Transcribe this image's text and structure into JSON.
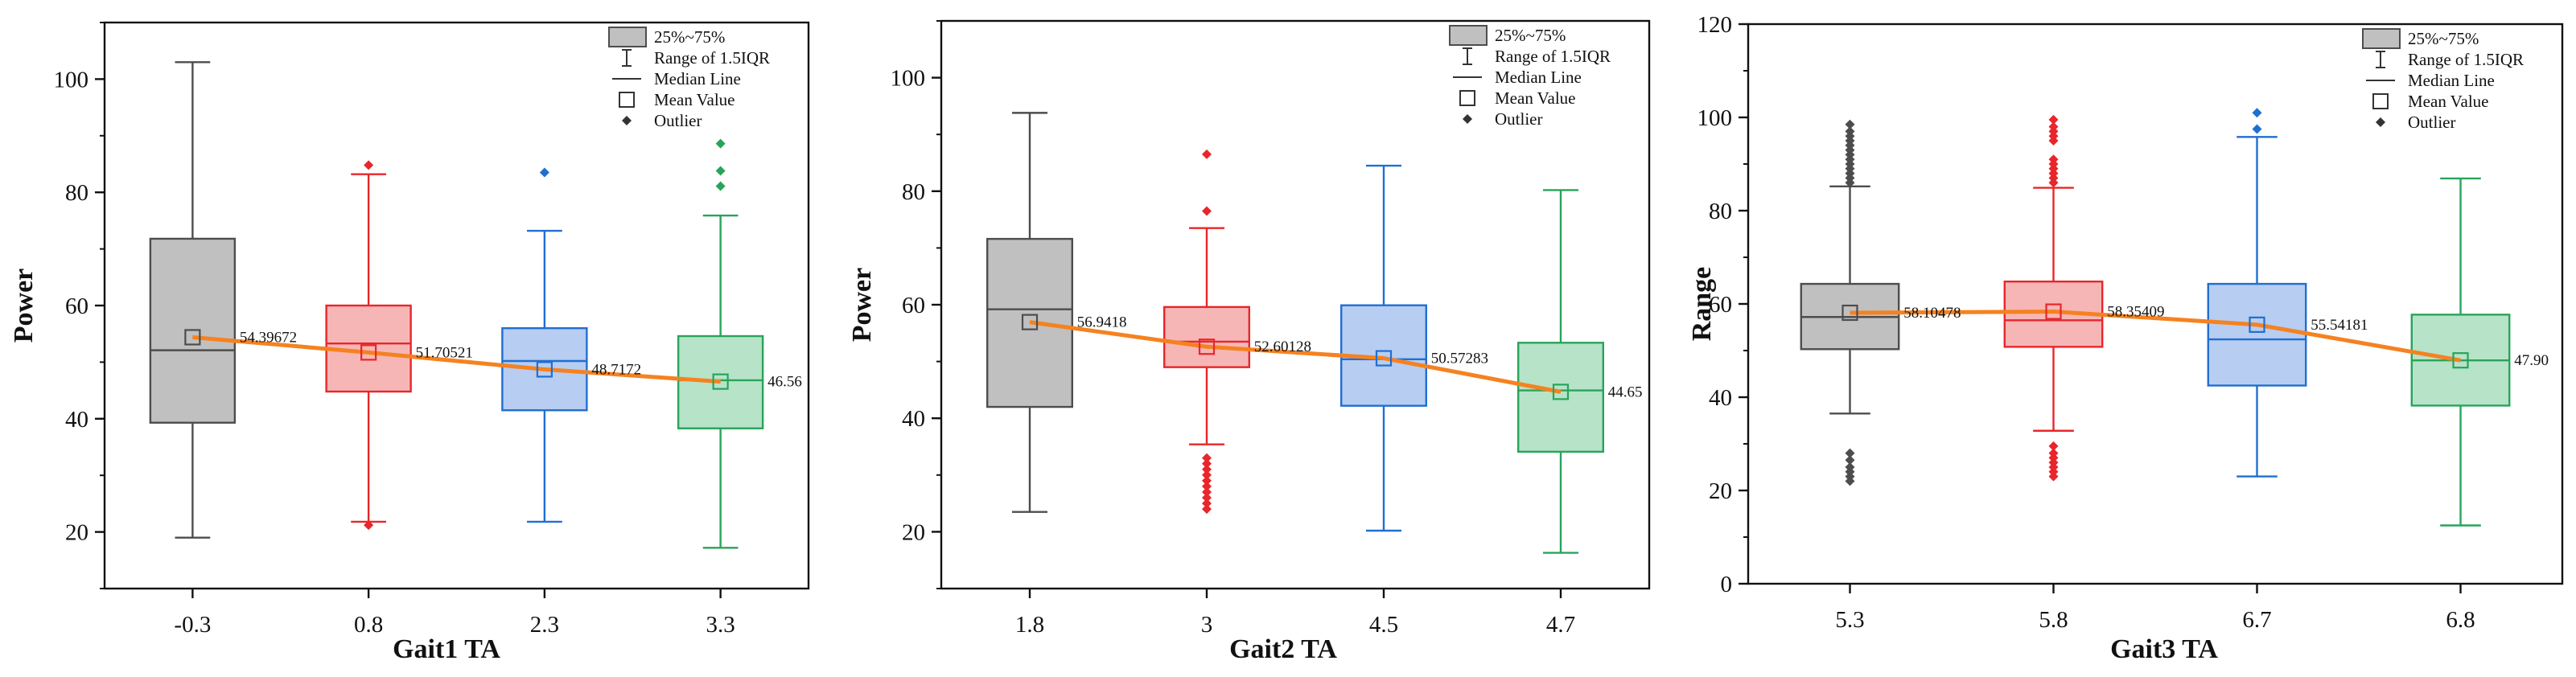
{
  "legend": {
    "box": "25%~75%",
    "range": "Range of 1.5IQR",
    "median": "Median Line",
    "mean": "Mean Value",
    "outlier": "Outlier"
  },
  "colors": {
    "gray": {
      "fill": "#c0c0c0",
      "stroke": "#4d4d4d"
    },
    "red": {
      "fill": "#f7b6b6",
      "stroke": "#e8262b"
    },
    "blue": {
      "fill": "#b7cdf2",
      "stroke": "#1f6fd1"
    },
    "green": {
      "fill": "#b7e3c9",
      "stroke": "#28a45a"
    },
    "trend": "#f58220"
  },
  "chart_data": [
    {
      "type": "box",
      "title": "",
      "xlabel": "Gait1 TA",
      "ylabel": "Power",
      "ylim": [
        10,
        110
      ],
      "yticks": [
        20,
        40,
        60,
        80,
        100
      ],
      "categories": [
        "-0.3",
        "0.8",
        "2.3",
        "3.3"
      ],
      "boxes": [
        {
          "color": "gray",
          "whisker_low": 19,
          "q1": 39.3,
          "median": 52.1,
          "q3": 71.8,
          "whisker_high": 103,
          "mean": 54.39672,
          "mean_label": "54.39672",
          "outliers": []
        },
        {
          "color": "red",
          "whisker_low": 21.8,
          "q1": 44.8,
          "median": 53.3,
          "q3": 60,
          "whisker_high": 83.2,
          "mean": 51.70521,
          "mean_label": "51.70521",
          "outliers": [
            21.2,
            84.8
          ]
        },
        {
          "color": "blue",
          "whisker_low": 21.8,
          "q1": 41.5,
          "median": 50.2,
          "q3": 56,
          "whisker_high": 73.2,
          "mean": 48.7172,
          "mean_label": "48.7172",
          "outliers": [
            83.5
          ]
        },
        {
          "color": "green",
          "whisker_low": 17.2,
          "q1": 38.3,
          "median": 46.8,
          "q3": 54.6,
          "whisker_high": 75.9,
          "mean": 46.56,
          "mean_label": "46.56",
          "outliers": [
            81.1,
            83.8,
            88.6
          ]
        }
      ]
    },
    {
      "type": "box",
      "title": "",
      "xlabel": "Gait2 TA",
      "ylabel": "Power",
      "ylim": [
        10,
        110
      ],
      "yticks": [
        20,
        40,
        60,
        80,
        100
      ],
      "categories": [
        "1.8",
        "3",
        "4.5",
        "4.7"
      ],
      "boxes": [
        {
          "color": "gray",
          "whisker_low": 23.5,
          "q1": 42,
          "median": 59.2,
          "q3": 71.6,
          "whisker_high": 93.8,
          "mean": 56.9418,
          "mean_label": "56.9418",
          "outliers": []
        },
        {
          "color": "red",
          "whisker_low": 35.4,
          "q1": 49,
          "median": 53.5,
          "q3": 59.6,
          "whisker_high": 73.5,
          "mean": 52.60128,
          "mean_label": "52.60128",
          "outliers": [
            24,
            25,
            26,
            27,
            28,
            29,
            30,
            31,
            32,
            33,
            76.5,
            86.5
          ]
        },
        {
          "color": "blue",
          "whisker_low": 20.2,
          "q1": 42.2,
          "median": 50.4,
          "q3": 59.9,
          "whisker_high": 84.5,
          "mean": 50.57283,
          "mean_label": "50.57283",
          "outliers": []
        },
        {
          "color": "green",
          "whisker_low": 16.3,
          "q1": 34.1,
          "median": 44.9,
          "q3": 53.3,
          "whisker_high": 80.2,
          "mean": 44.65,
          "mean_label": "44.65",
          "outliers": []
        }
      ]
    },
    {
      "type": "box",
      "title": "",
      "xlabel": "Gait3 TA",
      "ylabel": "Range",
      "ylim": [
        0,
        120
      ],
      "yticks": [
        0,
        20,
        40,
        60,
        80,
        100,
        120
      ],
      "categories": [
        "5.3",
        "5.8",
        "6.7",
        "6.8"
      ],
      "boxes": [
        {
          "color": "gray",
          "whisker_low": 36.5,
          "q1": 50.3,
          "median": 57.2,
          "q3": 64.3,
          "whisker_high": 85.2,
          "mean": 58.10478,
          "mean_label": "58.10478",
          "outliers": [
            22,
            23,
            24,
            25,
            26.5,
            28,
            86,
            87,
            88,
            89,
            90,
            91,
            92,
            93,
            94,
            95,
            96,
            97,
            98.5
          ]
        },
        {
          "color": "red",
          "whisker_low": 32.8,
          "q1": 50.8,
          "median": 56.5,
          "q3": 64.8,
          "whisker_high": 84.9,
          "mean": 58.35409,
          "mean_label": "58.35409",
          "outliers": [
            23,
            24,
            25,
            26,
            27,
            28,
            29.5,
            86,
            87,
            88,
            89,
            90,
            91,
            95,
            96,
            97,
            98,
            99.5
          ]
        },
        {
          "color": "blue",
          "whisker_low": 23,
          "q1": 42.5,
          "median": 52.4,
          "q3": 64.3,
          "whisker_high": 95.8,
          "mean": 55.54181,
          "mean_label": "55.54181",
          "outliers": [
            97.5,
            101
          ]
        },
        {
          "color": "green",
          "whisker_low": 12.5,
          "q1": 38.2,
          "median": 47.9,
          "q3": 57.7,
          "whisker_high": 86.9,
          "mean": 47.9,
          "mean_label": "47.90",
          "outliers": []
        }
      ]
    }
  ]
}
